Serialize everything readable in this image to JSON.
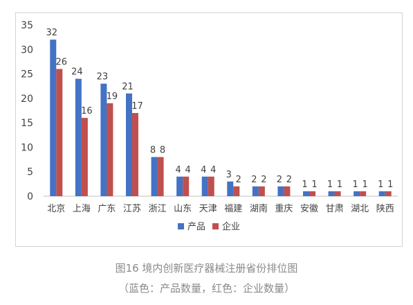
{
  "chart_data": {
    "type": "bar",
    "categories": [
      "北京",
      "上海",
      "广东",
      "江苏",
      "浙江",
      "山东",
      "天津",
      "福建",
      "湖南",
      "重庆",
      "安徽",
      "甘肃",
      "湖北",
      "陕西"
    ],
    "series": [
      {
        "name": "产品",
        "values": [
          32,
          24,
          23,
          21,
          8,
          4,
          4,
          3,
          2,
          2,
          1,
          1,
          1,
          1
        ],
        "color": "#4472c4"
      },
      {
        "name": "企业",
        "values": [
          26,
          16,
          19,
          17,
          8,
          4,
          4,
          2,
          2,
          2,
          1,
          1,
          1,
          1
        ],
        "color": "#c0504d"
      }
    ],
    "ylim": [
      0,
      35
    ],
    "yticks": [
      "0",
      "5",
      "10",
      "15",
      "20",
      "25",
      "30",
      "35"
    ],
    "xlabel": "",
    "ylabel": "",
    "grid": false,
    "legend": "bottom-center"
  },
  "captions": {
    "line1": "图16 境内创新医疗器械注册省份排位图",
    "line2": "（蓝色：产品数量，红色：企业数量）"
  }
}
